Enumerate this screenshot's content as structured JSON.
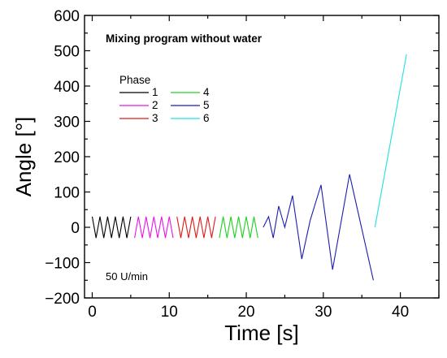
{
  "chart_data": {
    "type": "line",
    "xlabel": "Time [s]",
    "ylabel": "Angle [°]",
    "xlim": [
      -1,
      45
    ],
    "ylim": [
      -200,
      600
    ],
    "xticks": [
      "0",
      "10",
      "20",
      "30",
      "40"
    ],
    "yticks": [
      "−200",
      "−100",
      "0",
      "100",
      "200",
      "300",
      "400",
      "500",
      "600"
    ],
    "grid": false,
    "annotations": [
      "Mixing program without water",
      "50 U/min"
    ],
    "legend_title": "Phase",
    "legend_position": "upper-left",
    "series": [
      {
        "name": "1",
        "color": "#000000",
        "x": [
          0,
          0.5,
          1,
          1.5,
          2,
          2.5,
          3,
          3.5,
          4,
          4.5,
          5
        ],
        "y": [
          30,
          -30,
          30,
          -30,
          30,
          -30,
          30,
          -30,
          30,
          -30,
          30
        ]
      },
      {
        "name": "2",
        "color": "#e815e8",
        "x": [
          5.5,
          6,
          6.5,
          7,
          7.5,
          8,
          8.5,
          9,
          9.5,
          10,
          10.5
        ],
        "y": [
          -30,
          30,
          -30,
          30,
          -30,
          30,
          -30,
          30,
          -30,
          30,
          -30
        ]
      },
      {
        "name": "3",
        "color": "#e01a1a",
        "x": [
          11,
          11.5,
          12,
          12.5,
          13,
          13.5,
          14,
          14.5,
          15,
          15.5,
          16
        ],
        "y": [
          30,
          -30,
          30,
          -30,
          30,
          -30,
          30,
          -30,
          30,
          -30,
          30
        ]
      },
      {
        "name": "4",
        "color": "#20d020",
        "x": [
          16.5,
          17,
          17.5,
          18,
          18.5,
          19,
          19.5,
          20,
          20.5,
          21,
          21.5
        ],
        "y": [
          -30,
          30,
          -30,
          30,
          -30,
          30,
          -30,
          30,
          -30,
          30,
          -30
        ]
      },
      {
        "name": "5",
        "color": "#1c1cb0",
        "x": [
          22.2,
          22.9,
          23.5,
          24.2,
          25.0,
          26.0,
          27.2,
          28.3,
          29.7,
          31.2,
          33.4,
          36.5
        ],
        "y": [
          0,
          30,
          -30,
          60,
          0,
          90,
          -90,
          20,
          120,
          -120,
          150,
          -150
        ]
      },
      {
        "name": "6",
        "color": "#20e0e0",
        "x": [
          36.7,
          40.8
        ],
        "y": [
          0,
          490
        ]
      }
    ]
  }
}
